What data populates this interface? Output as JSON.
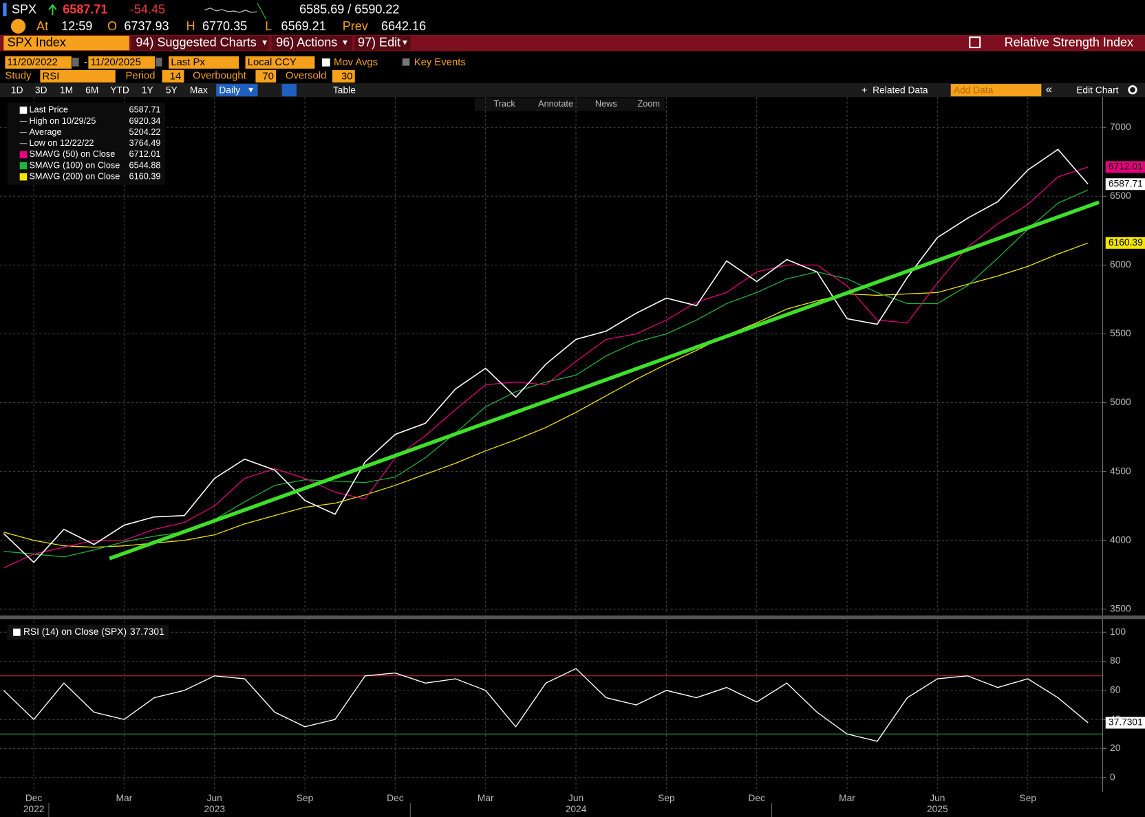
{
  "header": {
    "ticker": "SPX",
    "last": 6587.71,
    "change": -54.45,
    "bid_ask": "6585.69 / 6590.22",
    "at": "At",
    "time": "12:59",
    "open_label": "O",
    "open": 6737.93,
    "high_label": "H",
    "high": 6770.35,
    "low_label": "L",
    "low": 6569.21,
    "prev_label": "Prev",
    "prev": 6642.16
  },
  "toolbar": {
    "security": "SPX Index",
    "menus": [
      "94) Suggested Charts",
      "96) Actions",
      "97) Edit"
    ],
    "study_title": "Relative Strength Index"
  },
  "controls": {
    "start": "11/20/2022",
    "end": "11/20/2025",
    "field": "Last Px",
    "currency": "Local CCY",
    "mov_avgs": "Mov Avgs",
    "key_events": "Key Events",
    "study_label": "Study",
    "study": "RSI",
    "period_label": "Period",
    "period": 14,
    "overbought_label": "Overbought",
    "overbought": 70,
    "oversold_label": "Oversold",
    "oversold": 30,
    "ranges": [
      "1D",
      "3D",
      "1M",
      "6M",
      "YTD",
      "1Y",
      "5Y",
      "Max"
    ],
    "frequency": "Daily",
    "table": "Table",
    "related": "Related Data",
    "add_data": "Add Data",
    "edit_chart": "Edit Chart",
    "tools": [
      "Track",
      "Annotate",
      "News",
      "Zoom"
    ]
  },
  "chart_data": [
    {
      "type": "line",
      "categories": [
        null,
        "Dec",
        null,
        null,
        "Mar",
        null,
        null,
        "Jun",
        null,
        null,
        "Sep",
        null,
        null,
        "Dec",
        null,
        null,
        "Mar",
        null,
        null,
        "Jun",
        null,
        null,
        "Sep",
        null,
        null,
        "Dec",
        null,
        null,
        "Mar",
        null,
        null,
        "Jun",
        null,
        null,
        "Sep",
        null,
        null
      ],
      "years": [
        "2022",
        "2023",
        "2024",
        "2025"
      ],
      "ylim": [
        3470,
        7220
      ],
      "yticks": [
        3500,
        4000,
        4500,
        5000,
        5500,
        6000,
        6500,
        7000
      ],
      "grid": true,
      "series": [
        {
          "name": "Last Price",
          "color": "#ffffff",
          "values": [
            4050,
            3840,
            4080,
            3970,
            4110,
            4170,
            4180,
            4450,
            4590,
            4510,
            4290,
            4190,
            4570,
            4770,
            4850,
            5100,
            5250,
            5040,
            5280,
            5460,
            5520,
            5650,
            5760,
            5705,
            6030,
            5880,
            6040,
            5950,
            5610,
            5570,
            5910,
            6200,
            6340,
            6460,
            6690,
            6840,
            6587.71
          ]
        },
        {
          "name": "SMAVG (50)  on Close",
          "color": "#e6007e",
          "values": [
            3800,
            3900,
            3950,
            4000,
            4000,
            4080,
            4130,
            4250,
            4450,
            4520,
            4450,
            4350,
            4300,
            4600,
            4760,
            4950,
            5130,
            5150,
            5130,
            5300,
            5460,
            5500,
            5600,
            5730,
            5800,
            5950,
            6000,
            6000,
            5850,
            5600,
            5580,
            5870,
            6130,
            6300,
            6440,
            6640,
            6712.01
          ]
        },
        {
          "name": "SMAVG (100)  on Close",
          "color": "#1fb43c",
          "values": [
            3920,
            3900,
            3880,
            3930,
            3990,
            4030,
            4060,
            4150,
            4280,
            4400,
            4440,
            4430,
            4420,
            4460,
            4600,
            4780,
            4970,
            5080,
            5150,
            5200,
            5340,
            5440,
            5500,
            5600,
            5720,
            5800,
            5900,
            5950,
            5900,
            5800,
            5720,
            5720,
            5850,
            6050,
            6260,
            6450,
            6544.88
          ]
        },
        {
          "name": "SMAVG (200)  on Close",
          "color": "#f2e600",
          "values": [
            4060,
            4000,
            3960,
            3950,
            3960,
            3980,
            4000,
            4040,
            4120,
            4180,
            4240,
            4270,
            4330,
            4400,
            4480,
            4560,
            4650,
            4730,
            4820,
            4930,
            5050,
            5170,
            5280,
            5380,
            5490,
            5580,
            5680,
            5740,
            5790,
            5780,
            5790,
            5800,
            5860,
            5920,
            5990,
            6080,
            6160.39
          ]
        }
      ],
      "stats": [
        {
          "label": "High on 10/29/25",
          "value": 6920.34
        },
        {
          "label": "Average",
          "value": 5204.22
        },
        {
          "label": "Low on 12/22/22",
          "value": 3764.49
        }
      ]
    },
    {
      "type": "line",
      "ylim": [
        -10,
        108
      ],
      "yticks": [
        0,
        20,
        40,
        60,
        80,
        100
      ],
      "series": [
        {
          "name": "RSI (14)  on Close (SPX)",
          "color": "#ffffff",
          "values": [
            60,
            40,
            65,
            45,
            40,
            55,
            60,
            70,
            68,
            45,
            35,
            40,
            70,
            72,
            65,
            68,
            60,
            35,
            65,
            75,
            55,
            50,
            60,
            55,
            62,
            52,
            65,
            45,
            30,
            25,
            55,
            68,
            70,
            62,
            68,
            55,
            37.7301
          ]
        }
      ]
    }
  ]
}
